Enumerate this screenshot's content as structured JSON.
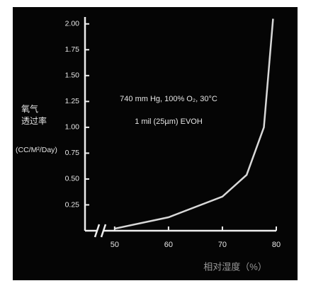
{
  "chart_data": {
    "type": "line",
    "annotations": [
      "740 mm Hg, 100% O₂, 30°C",
      "1 mil (25µm) EVOH"
    ],
    "ylabel": [
      "氧气",
      "透过率",
      "(CC/M²/Day)"
    ],
    "xlabel": "相对湿度（%）",
    "x": [
      50,
      60,
      70,
      74.5,
      77.7,
      79.4
    ],
    "series": [
      {
        "color": "#d8d8d8",
        "values": [
          0.02,
          0.13,
          0.33,
          0.54,
          1.0,
          2.05
        ]
      }
    ],
    "xlim": [
      44.5,
      80
    ],
    "xticks": [
      50,
      60,
      70,
      80
    ],
    "ylim": [
      0,
      2.06
    ],
    "yticks": [
      0.25,
      {
        "value": 0.5,
        "label": "0.50"
      },
      0.75,
      {
        "value": 1,
        "label": "1.00"
      },
      1.25,
      {
        "value": 1.5,
        "label": "1.50"
      },
      1.75,
      {
        "value": 2,
        "label": "2.00"
      }
    ]
  }
}
